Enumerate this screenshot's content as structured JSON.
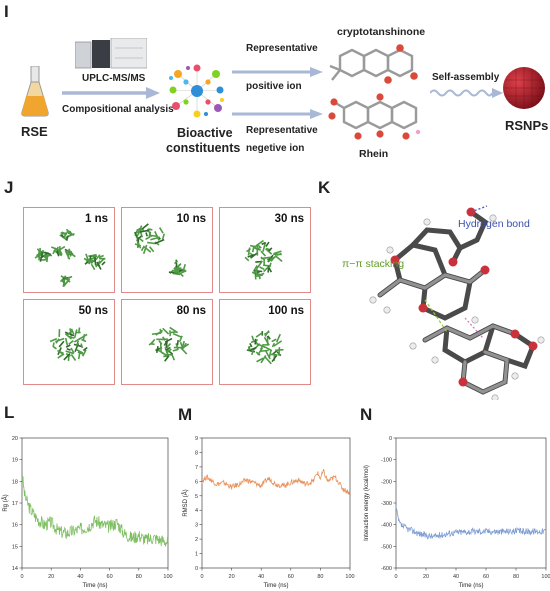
{
  "panels": {
    "I": "I",
    "J": "J",
    "K": "K",
    "L": "L",
    "M": "M",
    "N": "N"
  },
  "schematic": {
    "rse": "RSE",
    "instrument": "UPLC-MS/MS",
    "analysis": "Compositional analysis",
    "bioactive_line1": "Bioactive",
    "bioactive_line2": "constituents",
    "pos_line1": "Representative",
    "pos_line2": "positive ion",
    "neg_line1": "Representative",
    "neg_line2": "negetive ion",
    "compound1": "cryptotanshinone",
    "compound2": "Rhein",
    "self_assembly": "Self-assembly",
    "product": "RSNPs"
  },
  "snapshots": [
    "1 ns",
    "10 ns",
    "30 ns",
    "50 ns",
    "80 ns",
    "100 ns"
  ],
  "interactions": {
    "hbond": "Hydrogen bond",
    "stacking": "π−π stacking"
  },
  "chart_data": [
    {
      "type": "line",
      "xlabel": "Time (ns)",
      "ylabel": "Rg (Å)",
      "xlim": [
        0,
        100
      ],
      "ylim": [
        14,
        20
      ],
      "xticks": [
        "0",
        "20",
        "40",
        "60",
        "80",
        "100"
      ],
      "yticks": [
        "14",
        "15",
        "16",
        "17",
        "18",
        "19",
        "20"
      ],
      "color": "#7fbf63",
      "x": [
        0,
        2,
        5,
        8,
        10,
        15,
        20,
        25,
        30,
        35,
        40,
        45,
        50,
        55,
        60,
        65,
        70,
        75,
        80,
        85,
        90,
        95,
        100
      ],
      "y": [
        18.3,
        17.3,
        16.8,
        16.5,
        16.3,
        16.0,
        16.1,
        15.7,
        15.6,
        15.7,
        15.8,
        15.9,
        16.2,
        16.0,
        15.9,
        16.1,
        15.6,
        15.4,
        15.5,
        15.3,
        15.4,
        15.3,
        15.2
      ]
    },
    {
      "type": "line",
      "xlabel": "Time (ns)",
      "ylabel": "RMSD (Å)",
      "xlim": [
        0,
        100
      ],
      "ylim": [
        0,
        9
      ],
      "xticks": [
        "0",
        "20",
        "40",
        "60",
        "80",
        "100"
      ],
      "yticks": [
        "0",
        "1",
        "2",
        "3",
        "4",
        "5",
        "6",
        "7",
        "8",
        "9"
      ],
      "color": "#e8925a",
      "x": [
        0,
        3,
        6,
        10,
        15,
        20,
        25,
        30,
        35,
        40,
        45,
        50,
        55,
        60,
        65,
        70,
        75,
        78,
        80,
        82,
        85,
        90,
        95,
        100
      ],
      "y": [
        6.0,
        6.3,
        6.1,
        5.8,
        5.9,
        5.6,
        5.8,
        6.1,
        5.9,
        5.7,
        6.2,
        5.8,
        5.7,
        5.9,
        6.1,
        5.8,
        6.0,
        6.6,
        6.2,
        6.7,
        6.0,
        6.3,
        5.5,
        5.2
      ]
    },
    {
      "type": "line",
      "xlabel": "Time (ns)",
      "ylabel": "Interaction energy (kcal/mol)",
      "xlim": [
        0,
        100
      ],
      "ylim": [
        -600,
        0
      ],
      "xticks": [
        "0",
        "20",
        "40",
        "60",
        "80",
        "100"
      ],
      "yticks": [
        "-600",
        "-500",
        "-400",
        "-300",
        "-200",
        "-100",
        "0"
      ],
      "color": "#7f9ed4",
      "x": [
        0,
        1,
        2,
        3,
        5,
        8,
        10,
        15,
        20,
        25,
        30,
        35,
        40,
        50,
        60,
        70,
        80,
        90,
        100
      ],
      "y": [
        -320,
        -360,
        -390,
        -400,
        -410,
        -420,
        -425,
        -440,
        -450,
        -455,
        -448,
        -440,
        -435,
        -432,
        -430,
        -432,
        -430,
        -431,
        -430
      ]
    }
  ]
}
